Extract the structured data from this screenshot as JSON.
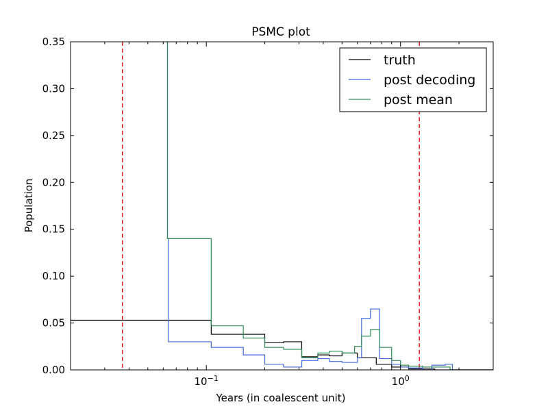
{
  "chart_data": {
    "type": "line",
    "title": "PSMC plot",
    "xlabel": "Years (in coalescent unit)",
    "ylabel": "Population",
    "xscale": "log",
    "xlim": [
      0.02,
      3.0
    ],
    "ylim": [
      0,
      0.35
    ],
    "x_ticks": [
      {
        "value": 0.1,
        "base": "10",
        "exp": "−1"
      },
      {
        "value": 1.0,
        "base": "10",
        "exp": "0"
      }
    ],
    "y_ticks": [
      {
        "value": 0.0,
        "label": "0.00"
      },
      {
        "value": 0.05,
        "label": "0.05"
      },
      {
        "value": 0.1,
        "label": "0.10"
      },
      {
        "value": 0.15,
        "label": "0.15"
      },
      {
        "value": 0.2,
        "label": "0.20"
      },
      {
        "value": 0.25,
        "label": "0.25"
      },
      {
        "value": 0.3,
        "label": "0.30"
      },
      {
        "value": 0.35,
        "label": "0.35"
      }
    ],
    "legend_position": "top-right",
    "vertical_lines": [
      {
        "x": 0.037,
        "color": "#ff0000",
        "style": "dashed"
      },
      {
        "x": 1.25,
        "color": "#ff0000",
        "style": "dashed"
      }
    ],
    "series": [
      {
        "name": "truth",
        "color": "#000000",
        "steps": [
          [
            0.02,
            0.053
          ],
          [
            0.106,
            0.038
          ],
          [
            0.2,
            0.029
          ],
          [
            0.25,
            0.03
          ],
          [
            0.31,
            0.014
          ],
          [
            0.375,
            0.016
          ],
          [
            0.43,
            0.015
          ],
          [
            0.5,
            0.018
          ],
          [
            0.6,
            0.013
          ],
          [
            0.75,
            0.006
          ],
          [
            0.9,
            0.003
          ],
          [
            1.1,
            0.001
          ],
          [
            1.5,
            0.0
          ],
          [
            3.0,
            0.0
          ]
        ]
      },
      {
        "name": "post decoding",
        "color": "#4169e1",
        "steps": [
          [
            0.0625,
            0.35
          ],
          [
            0.0631,
            0.14
          ],
          [
            0.0637,
            0.03
          ],
          [
            0.106,
            0.024
          ],
          [
            0.155,
            0.016
          ],
          [
            0.2,
            0.006
          ],
          [
            0.25,
            0.003
          ],
          [
            0.31,
            0.01
          ],
          [
            0.375,
            0.012
          ],
          [
            0.43,
            0.009
          ],
          [
            0.5,
            0.008
          ],
          [
            0.6,
            0.013
          ],
          [
            0.63,
            0.055
          ],
          [
            0.7,
            0.065
          ],
          [
            0.78,
            0.012
          ],
          [
            0.9,
            0.006
          ],
          [
            1.0,
            0.003
          ],
          [
            1.1,
            0.002
          ],
          [
            1.3,
            0.0
          ],
          [
            1.45,
            0.005
          ],
          [
            1.7,
            0.006
          ],
          [
            1.85,
            0.0
          ],
          [
            3.0,
            0.0
          ]
        ]
      },
      {
        "name": "post mean",
        "color": "#2e8b57",
        "steps": [
          [
            0.0625,
            0.35
          ],
          [
            0.0631,
            0.14
          ],
          [
            0.106,
            0.047
          ],
          [
            0.155,
            0.034
          ],
          [
            0.2,
            0.024
          ],
          [
            0.25,
            0.022
          ],
          [
            0.31,
            0.013
          ],
          [
            0.375,
            0.018
          ],
          [
            0.43,
            0.02
          ],
          [
            0.5,
            0.018
          ],
          [
            0.58,
            0.025
          ],
          [
            0.63,
            0.036
          ],
          [
            0.7,
            0.043
          ],
          [
            0.78,
            0.024
          ],
          [
            0.9,
            0.01
          ],
          [
            1.0,
            0.005
          ],
          [
            1.1,
            0.004
          ],
          [
            1.3,
            0.003
          ],
          [
            1.8,
            0.0
          ],
          [
            3.0,
            0.0
          ]
        ]
      }
    ]
  }
}
